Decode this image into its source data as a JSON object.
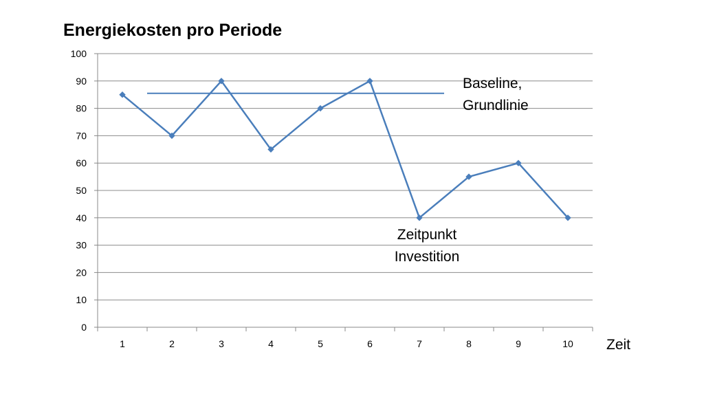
{
  "chart_data": {
    "type": "line",
    "title": "Energiekosten pro Periode",
    "xlabel": "Zeit",
    "ylabel": "",
    "categories": [
      "1",
      "2",
      "3",
      "4",
      "5",
      "6",
      "7",
      "8",
      "9",
      "10"
    ],
    "yticks": [
      "0",
      "10",
      "20",
      "30",
      "40",
      "50",
      "60",
      "70",
      "80",
      "90",
      "100"
    ],
    "ylim": [
      0,
      100
    ],
    "grid": true,
    "series": [
      {
        "values": [
          85,
          70,
          90,
          65,
          80,
          90,
          40,
          55,
          60,
          40
        ],
        "color": "#4a7ebb",
        "marker": "diamond"
      }
    ],
    "baseline": {
      "value": 85.5,
      "from_category": 1.5,
      "to_category": 7.5,
      "color": "#4a7ebb"
    },
    "annotations": {
      "baseline_line1": "Baseline,",
      "baseline_line2": "Grundlinie",
      "investment_line1": "Zeitpunkt",
      "investment_line2": "Investition"
    }
  }
}
